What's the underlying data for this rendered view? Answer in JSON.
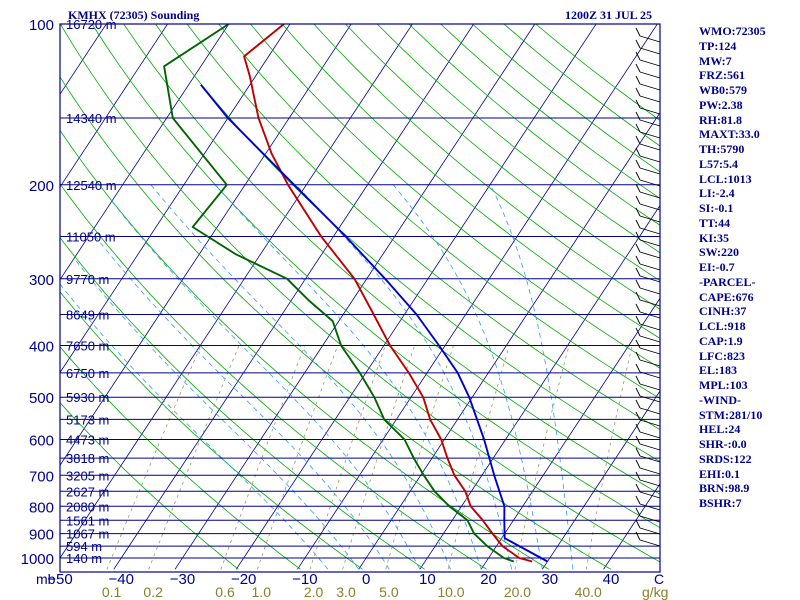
{
  "header": {
    "station": "KMHX (72305) Sounding",
    "time": "1200Z 31 JUL 25"
  },
  "chart_data": {
    "type": "line",
    "title": "KMHX (72305) Sounding",
    "subtitle": "1200Z 31 JUL 25",
    "x_axis": {
      "label": "C",
      "ticks": [
        "-50",
        "-40",
        "-30",
        "-20",
        "-10",
        "0",
        "10",
        "20",
        "30",
        "40"
      ],
      "range": [
        -50,
        48
      ]
    },
    "y_axis": {
      "label": "mb",
      "scale": "log",
      "range": [
        1000,
        100
      ],
      "pressure_ticks": [
        "100",
        "200",
        "300",
        "400",
        "500",
        "600",
        "700",
        "800",
        "900",
        "1000"
      ]
    },
    "mixing_ratio_axis": {
      "label": "g/kg",
      "ticks": [
        "0.1",
        "0.2",
        "0.6",
        "1.0",
        "2.0",
        "3.0",
        "5.0",
        "10.0",
        "20.0",
        "40.0"
      ]
    },
    "height_labels": [
      {
        "p": 100,
        "label": "16720 m"
      },
      {
        "p": 150,
        "label": "14340 m"
      },
      {
        "p": 200,
        "label": "12540 m"
      },
      {
        "p": 250,
        "label": "11050 m"
      },
      {
        "p": 300,
        "label": "9770 m"
      },
      {
        "p": 350,
        "label": "8649 m"
      },
      {
        "p": 400,
        "label": "7650 m"
      },
      {
        "p": 450,
        "label": "6750 m"
      },
      {
        "p": 500,
        "label": "5930 m"
      },
      {
        "p": 550,
        "label": "5173 m"
      },
      {
        "p": 600,
        "label": "4473 m"
      },
      {
        "p": 650,
        "label": "3818 m"
      },
      {
        "p": 700,
        "label": "3205 m"
      },
      {
        "p": 750,
        "label": "2627 m"
      },
      {
        "p": 800,
        "label": "2080 m"
      },
      {
        "p": 850,
        "label": "1561 m"
      },
      {
        "p": 900,
        "label": "1067 m"
      },
      {
        "p": 950,
        "label": "594 m"
      },
      {
        "p": 1000,
        "label": "140 m"
      }
    ],
    "series": [
      {
        "role": "temperature",
        "color": "#c00000",
        "points": [
          {
            "p": 1015,
            "t": 27.5
          },
          {
            "p": 1000,
            "t": 25.0
          },
          {
            "p": 950,
            "t": 21.0
          },
          {
            "p": 900,
            "t": 18.0
          },
          {
            "p": 850,
            "t": 15.0
          },
          {
            "p": 800,
            "t": 11.5
          },
          {
            "p": 750,
            "t": 9.0
          },
          {
            "p": 700,
            "t": 5.5
          },
          {
            "p": 650,
            "t": 2.5
          },
          {
            "p": 600,
            "t": -0.5
          },
          {
            "p": 550,
            "t": -4.5
          },
          {
            "p": 500,
            "t": -8.0
          },
          {
            "p": 450,
            "t": -13.0
          },
          {
            "p": 400,
            "t": -19.0
          },
          {
            "p": 350,
            "t": -25.0
          },
          {
            "p": 300,
            "t": -32.0
          },
          {
            "p": 250,
            "t": -42.0
          },
          {
            "p": 200,
            "t": -53.0
          },
          {
            "p": 175,
            "t": -59.0
          },
          {
            "p": 150,
            "t": -65.0
          },
          {
            "p": 125,
            "t": -71.0
          },
          {
            "p": 115,
            "t": -74.0
          },
          {
            "p": 100,
            "t": -71.0
          }
        ]
      },
      {
        "role": "dewpoint",
        "color": "#006400",
        "points": [
          {
            "p": 1015,
            "t": 24.5
          },
          {
            "p": 1000,
            "t": 22.5
          },
          {
            "p": 950,
            "t": 18.5
          },
          {
            "p": 900,
            "t": 15.0
          },
          {
            "p": 850,
            "t": 12.5
          },
          {
            "p": 800,
            "t": 8.0
          },
          {
            "p": 750,
            "t": 4.0
          },
          {
            "p": 700,
            "t": 0.5
          },
          {
            "p": 650,
            "t": -3.0
          },
          {
            "p": 600,
            "t": -6.5
          },
          {
            "p": 550,
            "t": -12.0
          },
          {
            "p": 500,
            "t": -16.0
          },
          {
            "p": 450,
            "t": -21.0
          },
          {
            "p": 400,
            "t": -27.0
          },
          {
            "p": 360,
            "t": -31.0
          },
          {
            "p": 330,
            "t": -37.0
          },
          {
            "p": 300,
            "t": -43.0
          },
          {
            "p": 270,
            "t": -54.0
          },
          {
            "p": 240,
            "t": -64.0
          },
          {
            "p": 200,
            "t": -63.0
          },
          {
            "p": 150,
            "t": -79.0
          },
          {
            "p": 120,
            "t": -86.0
          },
          {
            "p": 100,
            "t": -80.0
          }
        ]
      },
      {
        "role": "parcel",
        "color": "#0000cd",
        "points": [
          {
            "p": 1015,
            "t": 30.0
          },
          {
            "p": 918,
            "t": 20.5
          },
          {
            "p": 850,
            "t": 18.5
          },
          {
            "p": 800,
            "t": 17.0
          },
          {
            "p": 700,
            "t": 12.0
          },
          {
            "p": 600,
            "t": 6.5
          },
          {
            "p": 500,
            "t": -0.5
          },
          {
            "p": 450,
            "t": -5.0
          },
          {
            "p": 400,
            "t": -11.0
          },
          {
            "p": 350,
            "t": -18.0
          },
          {
            "p": 300,
            "t": -27.0
          },
          {
            "p": 250,
            "t": -38.0
          },
          {
            "p": 200,
            "t": -52.0
          },
          {
            "p": 150,
            "t": -70.0
          },
          {
            "p": 130,
            "t": -78.0
          }
        ]
      }
    ],
    "indices": [
      "WMO:72305",
      "TP:124",
      "MW:7",
      "FRZ:561",
      "WB0:579",
      "PW:2.38",
      "RH:81.8",
      "MAXT:33.0",
      "TH:5790",
      "L57:5.4",
      "LCL:1013",
      "LI:-2.4",
      "SI:-0.1",
      "TT:44",
      "KI:35",
      "SW:220",
      "EI:-0.7",
      "-PARCEL-",
      "CAPE:676",
      "CINH:37",
      "LCL:918",
      "CAP:1.9",
      "LFC:823",
      "EL:183",
      "MPL:103",
      "-WIND-",
      "STM:281/10",
      "HEL:24",
      "SHR-:0.0",
      "SRDS:122",
      "EHI:0.1",
      "BRN:98.9",
      "BSHR:7"
    ],
    "colors": {
      "frame": "#00008b",
      "isotherm": "#00008b",
      "dry_adiabat": "#00aa00",
      "moist_adiabat": "#3399ff",
      "mixing_ratio": "#999966",
      "mixing_label": "#8b7d2b",
      "wind_barb": "#000000"
    }
  }
}
